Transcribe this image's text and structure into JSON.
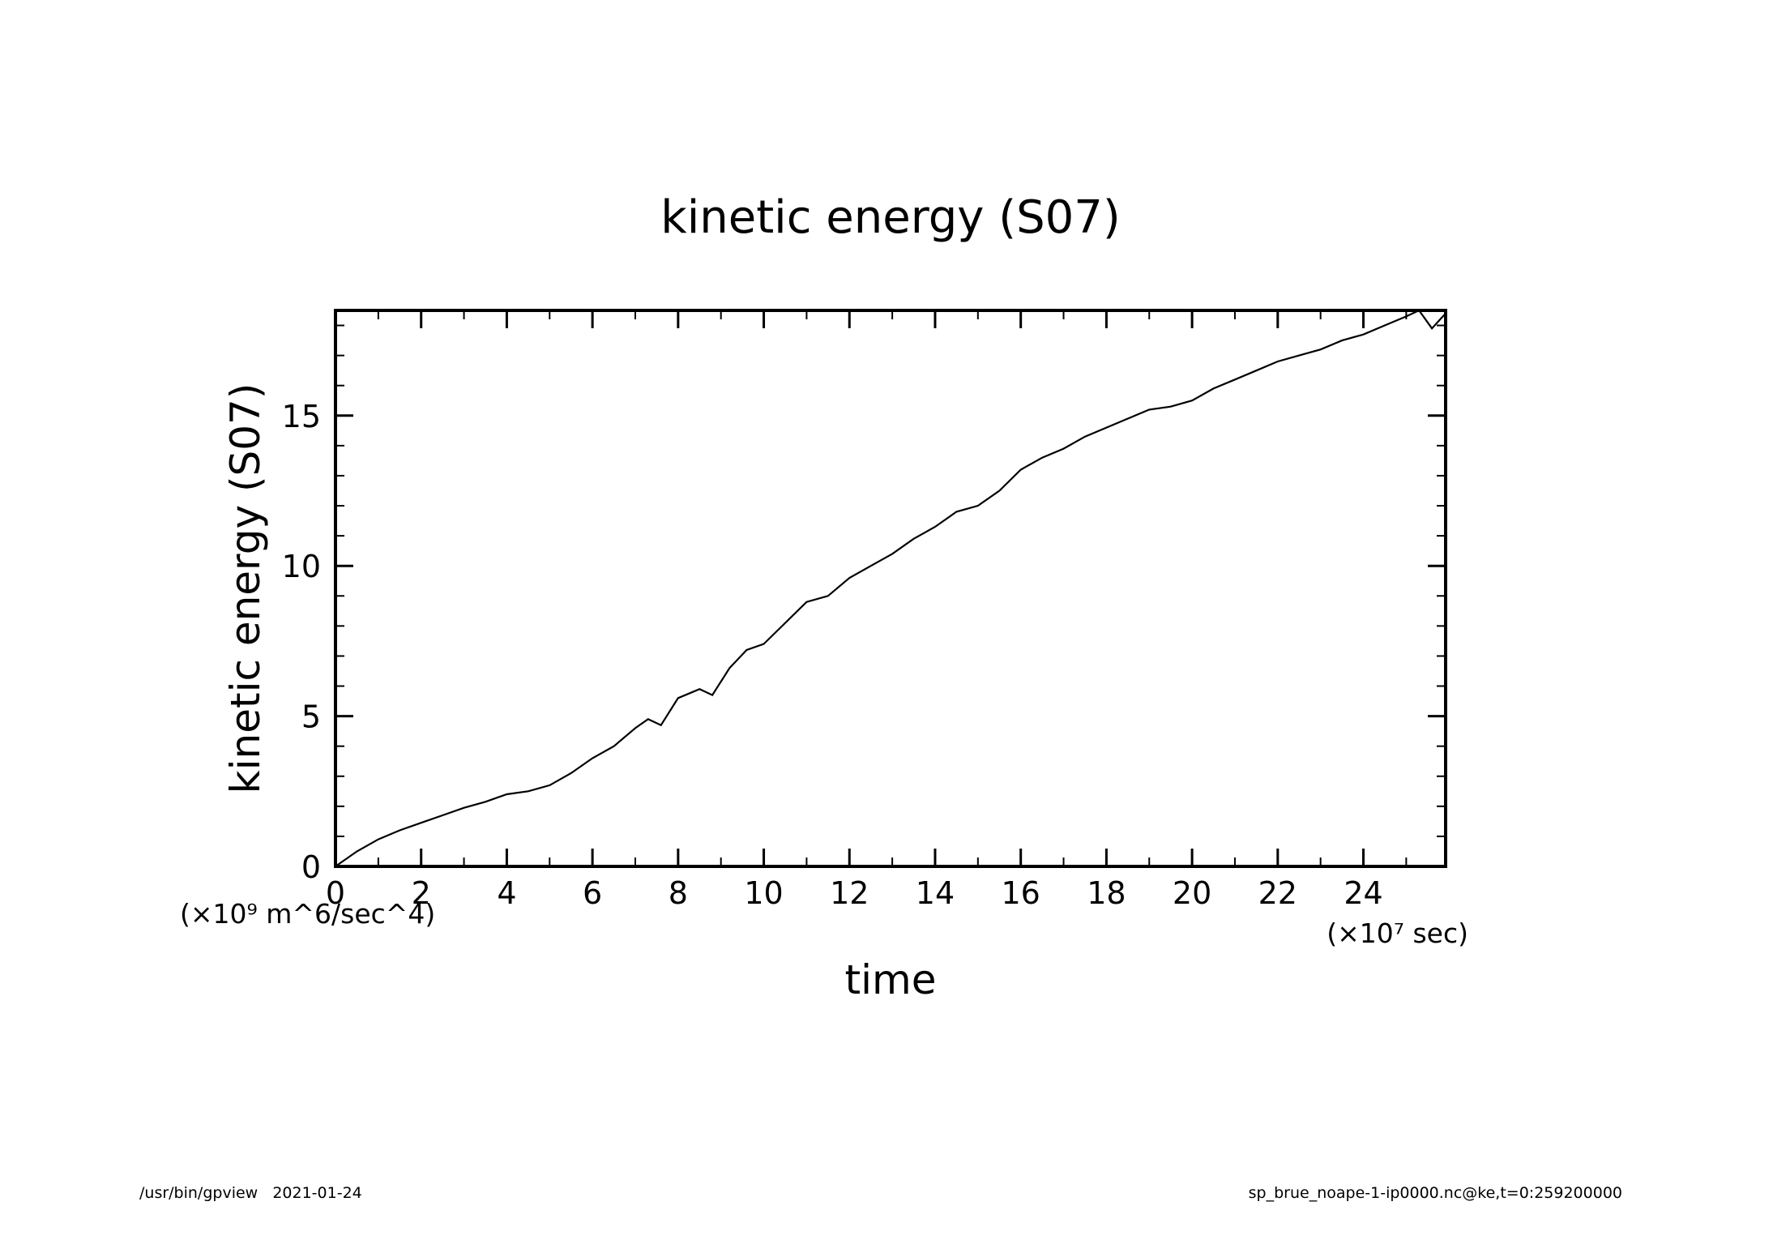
{
  "page": {
    "footer_left": "/usr/bin/gpview   2021-01-24",
    "footer_right": "sp_brue_noape-1-ip0000.nc@ke,t=0:259200000"
  },
  "chart_data": {
    "type": "line",
    "title": "kinetic energy (S07)",
    "xlabel": "time",
    "ylabel": "kinetic energy (S07)",
    "x_unit_label": "(×10⁷ sec)",
    "y_unit_label": "(×10⁹ m^6/sec^4)",
    "xlim": [
      0,
      25.92
    ],
    "ylim": [
      0,
      18.5
    ],
    "x_ticks": [
      0,
      2,
      4,
      6,
      8,
      10,
      12,
      14,
      16,
      18,
      20,
      22,
      24
    ],
    "y_ticks": [
      0,
      5,
      10,
      15
    ],
    "grid": false,
    "legend": "none",
    "line_color": "#000000",
    "series": [
      {
        "x": [
          0,
          0.5,
          1,
          1.5,
          2,
          2.5,
          3,
          3.5,
          4,
          4.5,
          5,
          5.5,
          6,
          6.5,
          7,
          7.3,
          7.6,
          8,
          8.5,
          8.8,
          9.2,
          9.6,
          10,
          10.5,
          11,
          11.5,
          12,
          12.5,
          13,
          13.5,
          14,
          14.5,
          15,
          15.5,
          16,
          16.5,
          17,
          17.5,
          18,
          18.5,
          19,
          19.5,
          20,
          20.5,
          21,
          21.5,
          22,
          22.5,
          23,
          23.5,
          24,
          24.5,
          25,
          25.3,
          25.6,
          25.92
        ],
        "values": [
          0,
          0.5,
          0.9,
          1.2,
          1.45,
          1.7,
          1.95,
          2.15,
          2.4,
          2.5,
          2.7,
          3.1,
          3.6,
          4.0,
          4.6,
          4.9,
          4.7,
          5.6,
          5.9,
          5.7,
          6.6,
          7.2,
          7.4,
          8.1,
          8.8,
          9.0,
          9.6,
          10.0,
          10.4,
          10.9,
          11.3,
          11.8,
          12.0,
          12.5,
          13.2,
          13.6,
          13.9,
          14.3,
          14.6,
          14.9,
          15.2,
          15.3,
          15.5,
          15.9,
          16.2,
          16.5,
          16.8,
          17.0,
          17.2,
          17.5,
          17.7,
          18.0,
          18.3,
          18.5,
          17.9,
          18.4
        ]
      }
    ]
  }
}
